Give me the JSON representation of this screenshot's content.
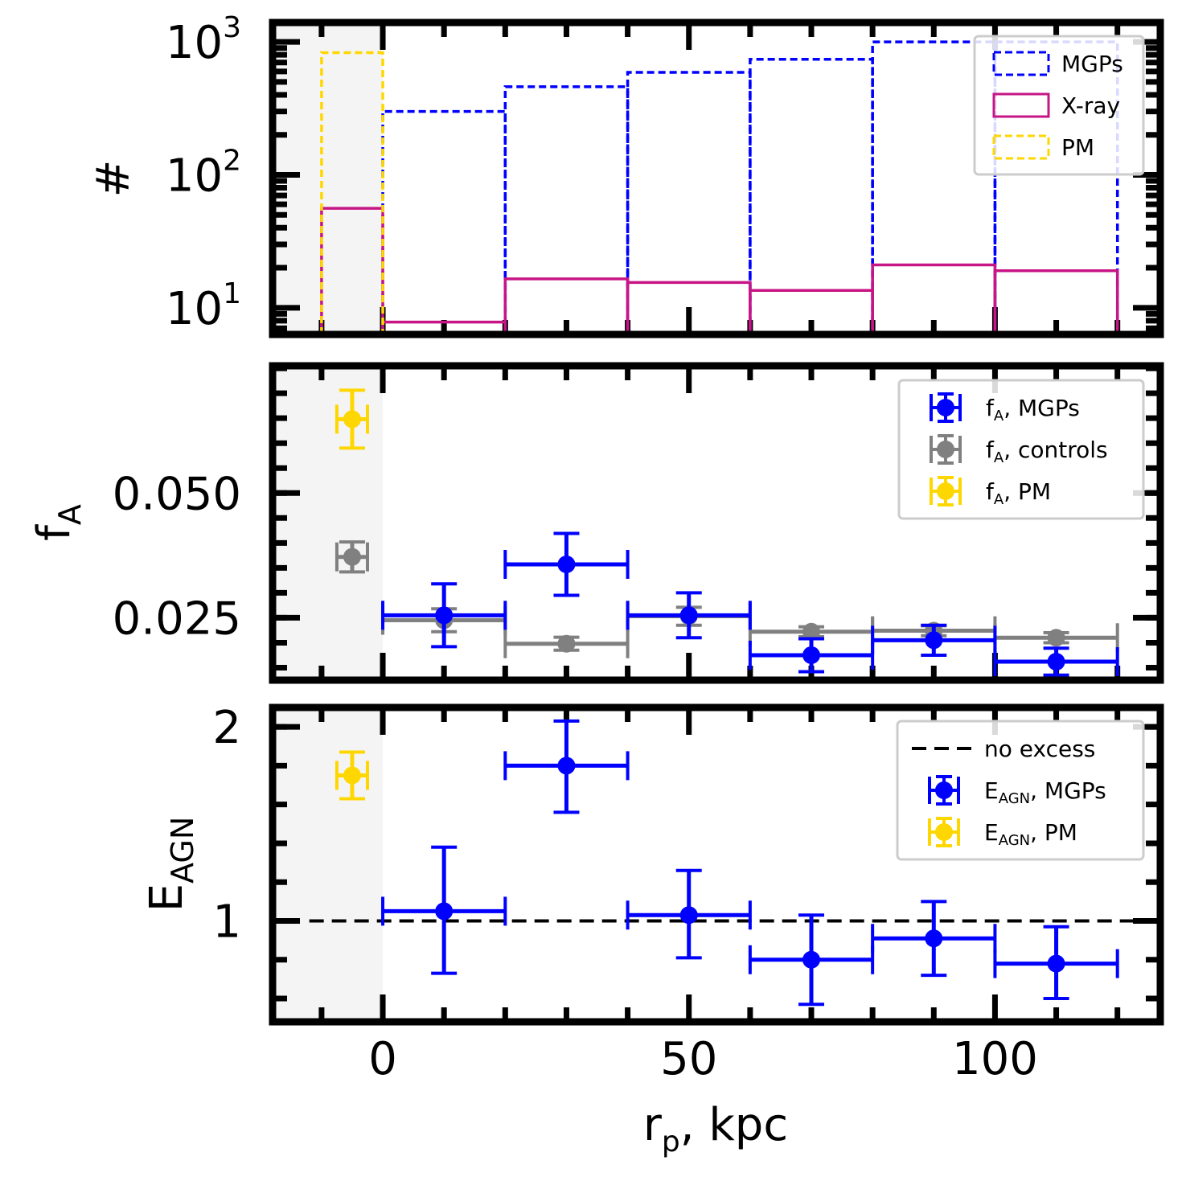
{
  "chart_data": [
    {
      "type": "histogram",
      "panel": "top",
      "ylabel": "#",
      "yscale": "log",
      "ylim": [
        6.3,
        1400
      ],
      "yticks": [
        {
          "v": 10,
          "base": "10",
          "exp": "1"
        },
        {
          "v": 100,
          "base": "10",
          "exp": "2"
        },
        {
          "v": 1000,
          "base": "10",
          "exp": "3"
        }
      ],
      "series": [
        {
          "name": "MGPs",
          "color": "#0000ff",
          "style": "dashed",
          "bins": [
            [
              0,
              20,
              300
            ],
            [
              20,
              40,
              460
            ],
            [
              40,
              60,
              590
            ],
            [
              60,
              80,
              740
            ],
            [
              80,
              100,
              1000
            ],
            [
              100,
              120,
              1000
            ]
          ]
        },
        {
          "name": "X-ray",
          "color": "#c71585",
          "style": "solid",
          "bins": [
            [
              -10,
              0,
              56
            ],
            [
              0,
              20,
              7.8
            ],
            [
              20,
              40,
              16.5
            ],
            [
              40,
              60,
              15.5
            ],
            [
              60,
              80,
              13.5
            ],
            [
              80,
              100,
              21
            ],
            [
              100,
              120,
              19
            ]
          ]
        },
        {
          "name": "PM",
          "color": "#ffd700",
          "style": "dashed",
          "bins": [
            [
              -10,
              0,
              830
            ]
          ]
        }
      ],
      "legend": "top-right"
    },
    {
      "type": "scatter",
      "panel": "middle",
      "ylabel": "f",
      "ylabel_sub": "A",
      "ylim": [
        0.0125,
        0.0755
      ],
      "yticks": [
        {
          "v": 0.025,
          "label": "0.025"
        },
        {
          "v": 0.05,
          "label": "0.050"
        }
      ],
      "series": [
        {
          "name": "f",
          "name_sub": "A",
          "name_rest": ", MGPs",
          "color": "#0000ff",
          "points": [
            [
              10,
              0.0255,
              10,
              0.0063
            ],
            [
              30,
              0.0357,
              10,
              0.0062
            ],
            [
              50,
              0.0255,
              10,
              0.0045
            ],
            [
              70,
              0.0175,
              10,
              0.0033
            ],
            [
              90,
              0.0205,
              10,
              0.003
            ],
            [
              110,
              0.0162,
              10,
              0.0027
            ]
          ]
        },
        {
          "name": "f",
          "name_sub": "A",
          "name_rest": ", controls",
          "color": "#808080",
          "points": [
            [
              -5,
              0.0372,
              2.5,
              0.003
            ],
            [
              10,
              0.0245,
              10,
              0.0023
            ],
            [
              30,
              0.0198,
              10,
              0.0013
            ],
            [
              50,
              0.0253,
              10,
              0.0018
            ],
            [
              70,
              0.0222,
              10,
              0.001
            ],
            [
              90,
              0.0224,
              10,
              0.001
            ],
            [
              110,
              0.021,
              10,
              0.001
            ]
          ]
        },
        {
          "name": "f",
          "name_sub": "A",
          "name_rest": ", PM",
          "color": "#ffd700",
          "points": [
            [
              -5,
              0.0648,
              2.5,
              0.0058
            ]
          ]
        }
      ],
      "legend": "top-right"
    },
    {
      "type": "scatter",
      "panel": "bottom",
      "ylabel": "E",
      "ylabel_sub": "AGN",
      "xlabel": "r",
      "xlabel_sub": "p",
      "xlabel_rest": ", kpc",
      "ylim": [
        0.48,
        2.1
      ],
      "yticks": [
        {
          "v": 1,
          "label": "1"
        },
        {
          "v": 2,
          "label": "2"
        }
      ],
      "reference_line": {
        "y": 1,
        "name": "no excess",
        "color": "#000000",
        "style": "dashed"
      },
      "series": [
        {
          "name": "E",
          "name_sub": "AGN",
          "name_rest": ", MGPs",
          "color": "#0000ff",
          "points": [
            [
              10,
              1.05,
              10,
              0.32,
              0.33
            ],
            [
              30,
              1.8,
              10,
              0.24,
              0.23
            ],
            [
              50,
              1.03,
              10,
              0.22,
              0.23
            ],
            [
              70,
              0.8,
              10,
              0.23,
              0.23
            ],
            [
              90,
              0.91,
              10,
              0.19,
              0.19
            ],
            [
              110,
              0.78,
              10,
              0.18,
              0.19
            ]
          ]
        },
        {
          "name": "E",
          "name_sub": "AGN",
          "name_rest": ", PM",
          "color": "#ffd700",
          "points": [
            [
              -5,
              1.75,
              2.5,
              0.12,
              0.12
            ]
          ]
        }
      ],
      "legend": "top-right"
    }
  ],
  "xaxis": {
    "xlim": [
      -18,
      127
    ],
    "xticks": [
      {
        "v": 0,
        "label": "0"
      },
      {
        "v": 50,
        "label": "50"
      },
      {
        "v": 100,
        "label": "100"
      }
    ],
    "shaded_region": [
      -18,
      0
    ]
  }
}
